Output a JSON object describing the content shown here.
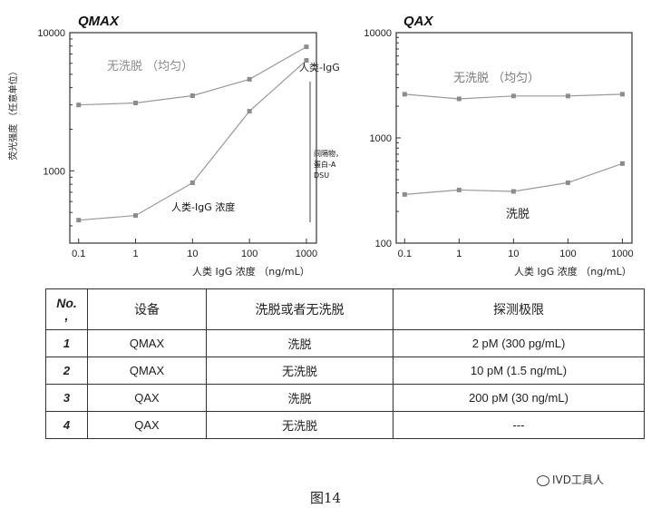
{
  "chart_data": [
    {
      "type": "line",
      "title": "QMAX",
      "xlabel": "人类 IgG 浓度 （ng/mL）",
      "ylabel": "荧光强度 （任意单位）",
      "x_scale": "log",
      "y_scale": "log",
      "xlim": [
        0.07,
        1500
      ],
      "ylim": [
        300,
        10000
      ],
      "x_ticks": [
        "0.1",
        "1",
        "10",
        "100",
        "1000"
      ],
      "y_ticks": [
        "1000",
        "10000"
      ],
      "series": [
        {
          "name": "无洗脱 （均匀）",
          "x": [
            0.1,
            1,
            10,
            100,
            1000
          ],
          "y": [
            3000,
            3100,
            3500,
            4600,
            7900
          ]
        },
        {
          "name": "人类-IgG",
          "x": [
            0.1,
            1,
            10,
            100,
            1000
          ],
          "y": [
            440,
            475,
            820,
            2700,
            6300
          ]
        }
      ],
      "annotations": [
        "人类-IgG 浓度",
        "间隔物，",
        "蛋白-A",
        "DSU"
      ]
    },
    {
      "type": "line",
      "title": "QAX",
      "xlabel": "人类 IgG 浓度 （ng/mL）",
      "ylabel": "",
      "x_scale": "log",
      "y_scale": "log",
      "xlim": [
        0.07,
        1500
      ],
      "ylim": [
        100,
        10000
      ],
      "x_ticks": [
        "0.1",
        "1",
        "10",
        "100",
        "1000"
      ],
      "y_ticks": [
        "100",
        "1000",
        "10000"
      ],
      "series": [
        {
          "name": "无洗脱 （均匀）",
          "x": [
            0.1,
            1,
            10,
            100,
            1000
          ],
          "y": [
            2600,
            2350,
            2500,
            2500,
            2600
          ]
        },
        {
          "name": "洗脱",
          "x": [
            0.1,
            1,
            10,
            100,
            1000
          ],
          "y": [
            290,
            320,
            310,
            375,
            570
          ]
        }
      ]
    }
  ],
  "table": {
    "headers": [
      "No.\n,",
      "设备",
      "洗脱或者无洗脱",
      "探测极限"
    ],
    "rows": [
      [
        "1",
        "QMAX",
        "洗脱",
        "2 pM (300 pg/mL)"
      ],
      [
        "2",
        "QMAX",
        "无洗脱",
        "10 pM (1.5 ng/mL)"
      ],
      [
        "3",
        "QAX",
        "洗脱",
        "200 pM (30 ng/mL)"
      ],
      [
        "4",
        "QAX",
        "无洗脱",
        "---"
      ]
    ]
  },
  "figure_caption": "图14",
  "watermark": "IVD工具人",
  "colors": {
    "line": "#9a9a9a",
    "marker": "#8c8c8c",
    "axis": "#333333",
    "grid": "#d0d0d0"
  }
}
